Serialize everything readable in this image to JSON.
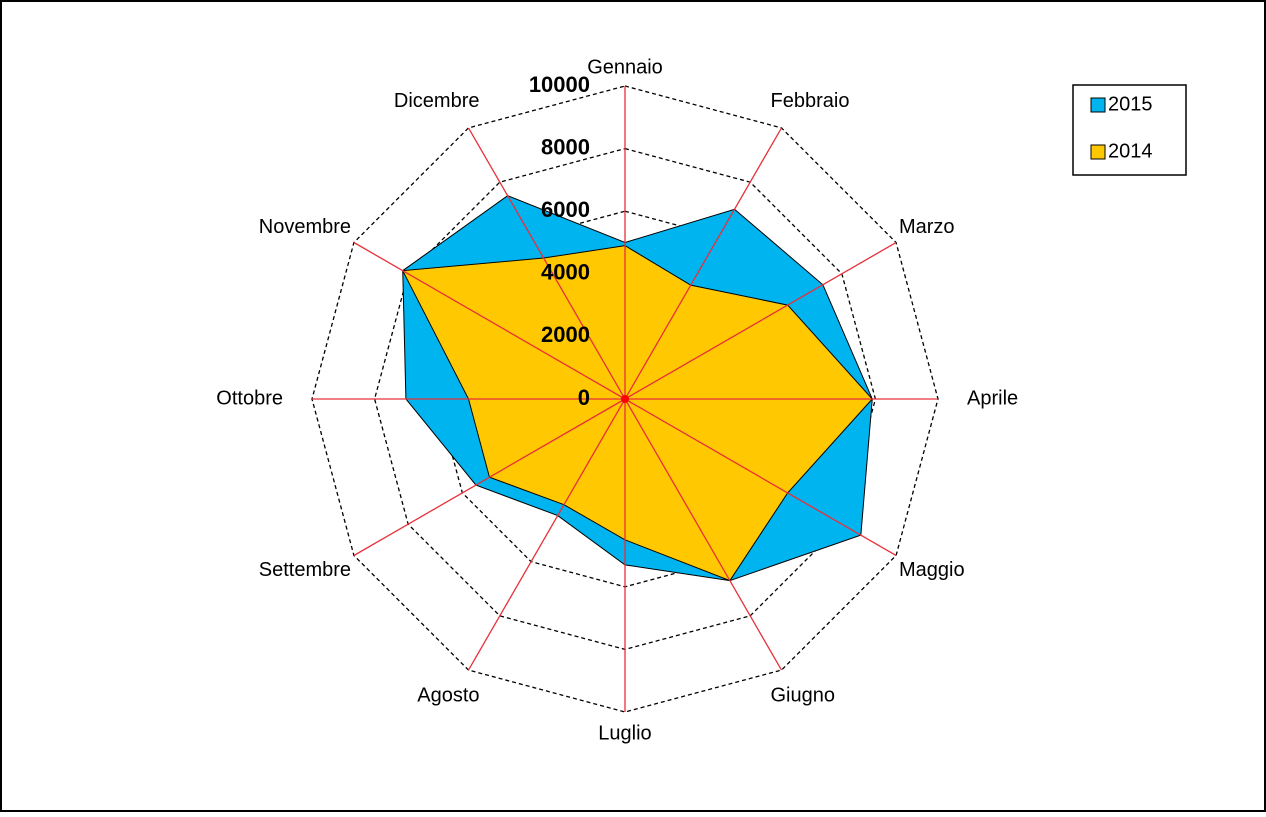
{
  "chart_data": {
    "type": "radar",
    "categories": [
      "Gennaio",
      "Febbraio",
      "Marzo",
      "Aprile",
      "Maggio",
      "Giugno",
      "Luglio",
      "Agosto",
      "Settembre",
      "Ottobre",
      "Novembre",
      "Dicembre"
    ],
    "series": [
      {
        "name": "2015",
        "color": "#00b4f0",
        "values": [
          5000,
          7000,
          7300,
          7900,
          8700,
          6700,
          5300,
          4300,
          5500,
          7000,
          8200,
          7500
        ]
      },
      {
        "name": "2014",
        "color": "#ffc800",
        "values": [
          4900,
          4200,
          6000,
          7900,
          6000,
          6700,
          4500,
          3900,
          5000,
          5000,
          8200,
          5200
        ]
      }
    ],
    "ylim": [
      0,
      10000
    ],
    "yticks": [
      0,
      2000,
      4000,
      6000,
      8000,
      10000
    ],
    "grid": true,
    "legend": "top-right"
  }
}
